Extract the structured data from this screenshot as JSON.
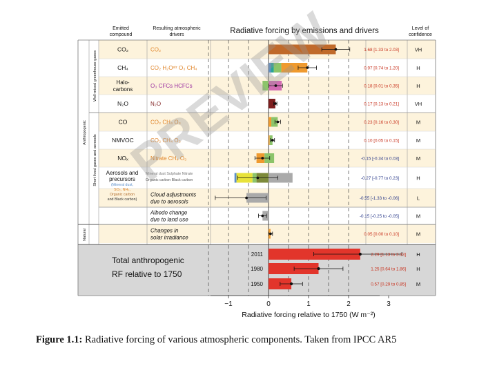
{
  "header": {
    "col1": [
      "Emitted",
      "compound"
    ],
    "col2": [
      "Resulting atmospheric",
      "drivers"
    ],
    "title": "Radiative forcing by emissions and drivers",
    "col4": [
      "Level of",
      "confidence"
    ]
  },
  "group_labels": {
    "wmghg": "Well-mixed greenhouse gases",
    "slgha": "Short lived gases and aerosols",
    "anthropogenic": "Anthropogenic",
    "natural": "Natural"
  },
  "colors": {
    "band": "#fdf3dc",
    "total_bg": "#d7d7d7",
    "co2": "#c06a2a",
    "orange": "#ef9a2f",
    "blue": "#5b8ec9",
    "teal": "#2aa398",
    "green": "#8cc46a",
    "pink": "#d36bb3",
    "darkred": "#7e1e1e",
    "red": "#e2352b",
    "gray": "#aaaaaa",
    "olive": "#7d8a3a",
    "yellow": "#e8e23a",
    "drivers_orange": "#e0852a",
    "value_red": "#c8321e",
    "value_blue": "#2a3a8a"
  },
  "chart_data": {
    "type": "bar",
    "title": "Radiative forcing by emissions and drivers",
    "xlabel": "Radiative forcing relative to 1750 (W m⁻²)",
    "xlim": [
      -1.5,
      3.2
    ],
    "xticks": [
      "−1",
      "0",
      "1",
      "2",
      "3"
    ],
    "xtick_values": [
      -1,
      0,
      1,
      2,
      3
    ],
    "grid": "dashed verticals at -1.5, -1, -0.5, 0.5, 1, 1.5, 2",
    "rows": [
      {
        "compound": "CO₂",
        "drivers": "CO₂",
        "value": 1.68,
        "low": 1.33,
        "high": 2.03,
        "label": "1.68 [1.33 to 2.03]",
        "confidence": "VH",
        "bars": [
          [
            0,
            1.68,
            "co2"
          ]
        ]
      },
      {
        "compound": "CH₄",
        "drivers": "CO₂   H₂Oˢᵗʳ   O₃   CH₄",
        "value": 0.97,
        "low": 0.74,
        "high": 1.2,
        "label": "0.97 [0.74 to 1.20]",
        "confidence": "H",
        "bars": [
          [
            0,
            0.06,
            "blue"
          ],
          [
            0.06,
            0.13,
            "teal"
          ],
          [
            0.13,
            0.32,
            "green"
          ],
          [
            0.32,
            0.97,
            "orange"
          ]
        ]
      },
      {
        "compound": "Halo-carbons",
        "drivers": "O₃   CFCs   HCFCs",
        "value": 0.18,
        "low": 0.01,
        "high": 0.35,
        "label": "0.18 [0.01 to 0.35]",
        "confidence": "H",
        "bars": [
          [
            -0.15,
            0,
            "green"
          ],
          [
            0,
            0.33,
            "pink"
          ]
        ]
      },
      {
        "compound": "N₂O",
        "drivers": "N₂O",
        "value": 0.17,
        "low": 0.13,
        "high": 0.21,
        "label": "0.17 [0.13 to 0.21]",
        "confidence": "VH",
        "bars": [
          [
            0,
            0.17,
            "darkred"
          ]
        ]
      },
      {
        "compound": "CO",
        "drivers": "CO₂   CH₄   O₃",
        "value": 0.23,
        "low": 0.16,
        "high": 0.3,
        "label": "0.23 [0.16 to 0.30]",
        "confidence": "M",
        "bars": [
          [
            0,
            0.07,
            "orange"
          ],
          [
            0.07,
            0.23,
            "green"
          ]
        ]
      },
      {
        "compound": "NMVOC",
        "drivers": "CO₂   CH₄   O₃",
        "value": 0.1,
        "low": 0.05,
        "high": 0.15,
        "label": "0.10 [0.05 to 0.15]",
        "confidence": "M",
        "bars": [
          [
            0,
            0.03,
            "orange"
          ],
          [
            0.03,
            0.1,
            "green"
          ]
        ]
      },
      {
        "compound": "NOₓ",
        "drivers": "Nitrate   CH₄   O₃",
        "value": -0.15,
        "low": -0.34,
        "high": 0.03,
        "label": "-0.15 [-0.34 to 0.03]",
        "confidence": "M",
        "bars": [
          [
            -0.3,
            -0.1,
            "orange"
          ],
          [
            -0.1,
            0,
            "green"
          ],
          [
            0,
            0.14,
            "green"
          ]
        ]
      },
      {
        "compound": "Aerosols and precursors",
        "drivers": "Mineral dust  Sulphate  Nitrate  Organic carbon  Black carbon",
        "value": -0.27,
        "low": -0.77,
        "high": 0.23,
        "label": "-0.27 [-0.77 to 0.23]",
        "confidence": "H",
        "bars": [
          [
            -0.85,
            -0.8,
            "blue"
          ],
          [
            -0.8,
            -0.4,
            "yellow"
          ],
          [
            -0.4,
            -0.3,
            "green"
          ],
          [
            -0.3,
            0,
            "olive"
          ],
          [
            0,
            0.6,
            "gray"
          ]
        ]
      },
      {
        "compound": "",
        "drivers": "Cloud adjustments due to aerosols",
        "value": -0.55,
        "low": -1.33,
        "high": -0.06,
        "label": "-0.55 [-1.33 to -0.06]",
        "confidence": "L",
        "bars": [
          [
            -0.55,
            0,
            "gray"
          ]
        ]
      },
      {
        "compound": "",
        "drivers": "Albedo change due to land use",
        "value": -0.15,
        "low": -0.25,
        "high": -0.05,
        "label": "-0.15 [-0.25 to -0.05]",
        "confidence": "M",
        "bars": [
          [
            -0.15,
            0,
            "gray"
          ]
        ]
      },
      {
        "compound": "",
        "drivers": "Changes in solar irradiance",
        "value": 0.05,
        "low": 0.0,
        "high": 0.1,
        "label": "0.05 [0.00 to 0.10]",
        "confidence": "M",
        "bars": [
          [
            0,
            0.05,
            "orange"
          ]
        ]
      }
    ],
    "totals": {
      "label": [
        "Total anthropogenic",
        "RF relative to 1750"
      ],
      "rows": [
        {
          "year": "2011",
          "value": 2.29,
          "low": 1.13,
          "high": 3.33,
          "label": "2.29 [1.13 to 3.33]",
          "confidence": "H"
        },
        {
          "year": "1980",
          "value": 1.25,
          "low": 0.64,
          "high": 1.86,
          "label": "1.25 [0.64 to 1.86]",
          "confidence": "H"
        },
        {
          "year": "1950",
          "value": 0.57,
          "low": 0.29,
          "high": 0.85,
          "label": "0.57 [0.29 to 0.85]",
          "confidence": "M"
        }
      ]
    }
  },
  "aerosol_sub": [
    "(Mineral dust,",
    "SO₂, NH₃,",
    "Organic carbon",
    "and Black carbon)"
  ],
  "watermark": "PREVIEW",
  "caption": {
    "label": "Figure 1.1:",
    "text": " Radiative forcing of various atmospheric components. Taken from IPCC AR5"
  }
}
